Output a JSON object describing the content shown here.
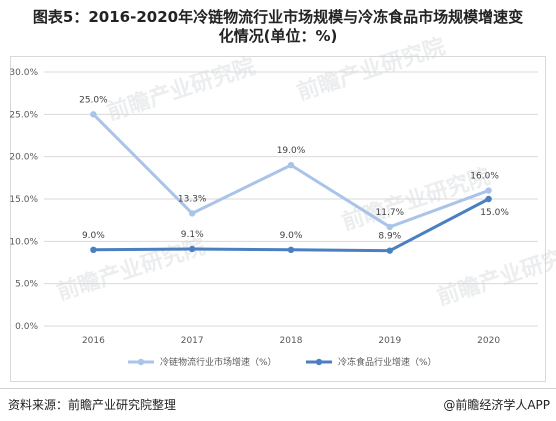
{
  "title": {
    "line1": "图表5：2016-2020年冷链物流行业市场规模与冷冻食品市场规模增速变",
    "line2": "化情况(单位：%)"
  },
  "footer": {
    "source": "资料来源：前瞻产业研究院整理",
    "brand": "@前瞻经济学人APP"
  },
  "watermark": "前瞻产业研究院",
  "chart_data": {
    "type": "line",
    "categories": [
      "2016",
      "2017",
      "2018",
      "2019",
      "2020"
    ],
    "ylim": [
      0,
      30
    ],
    "yticks": [
      0,
      5,
      10,
      15,
      20,
      25,
      30
    ],
    "ytick_labels": [
      "0.0%",
      "5.0%",
      "10.0%",
      "15.0%",
      "20.0%",
      "25.0%",
      "30.0%"
    ],
    "grid": true,
    "legend": "bottom",
    "series": [
      {
        "name": "冷链物流行业市场增速（%）",
        "color": "#a9c4e8",
        "values": [
          25.0,
          13.3,
          19.0,
          11.7,
          16.0
        ],
        "labels": [
          "25.0%",
          "13.3%",
          "19.0%",
          "11.7%",
          "16.0%"
        ]
      },
      {
        "name": "冷冻食品行业增速（%）",
        "color": "#4a7fc1",
        "values": [
          9.0,
          9.1,
          9.0,
          8.9,
          15.0
        ],
        "labels": [
          "9.0%",
          "9.1%",
          "9.0%",
          "8.9%",
          "15.0%"
        ]
      }
    ]
  }
}
